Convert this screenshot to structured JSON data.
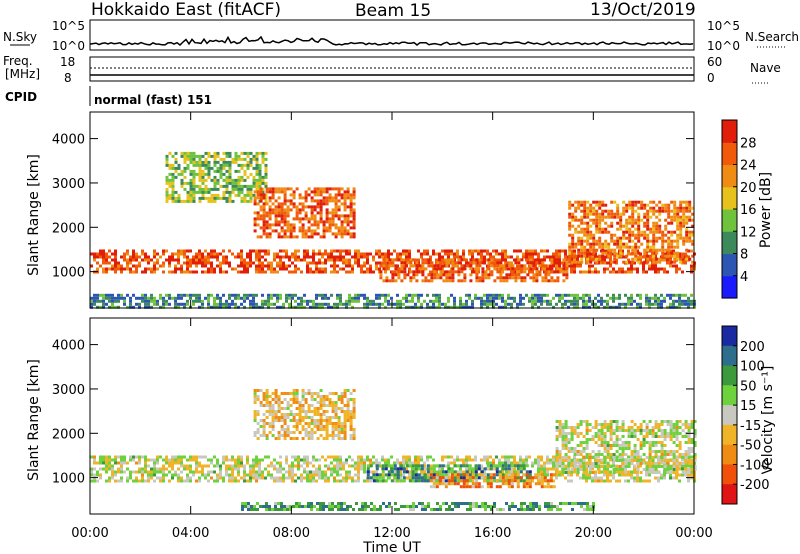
{
  "header": {
    "station": "Hokkaido East (fitACF)",
    "beam": "Beam 15",
    "date": "13/Oct/2019"
  },
  "strip": {
    "nsky_label": "N.Sky",
    "nsearch_label": "N.Search",
    "noise_ticks": [
      "10^5",
      "10^0"
    ],
    "freq_label_1": "Freq.",
    "freq_label_2": "[MHz]",
    "freq_ticks": [
      "18",
      "8"
    ],
    "nave_label": "Nave",
    "nave_ticks": [
      "60",
      "0"
    ],
    "cpid_label": "CPID",
    "cpid_value": "normal (fast) 151"
  },
  "chart_data": [
    {
      "type": "heatmap",
      "name": "power",
      "ylabel": "Slant Range [km]",
      "xlabel": "Time UT",
      "x_ticks": [
        "00:00",
        "04:00",
        "08:00",
        "12:00",
        "16:00",
        "20:00",
        "00:00"
      ],
      "xlim_hours": [
        0,
        24
      ],
      "ylim": [
        180,
        4600
      ],
      "y_ticks": [
        1000,
        2000,
        3000,
        4000
      ],
      "colorbar": {
        "label": "Power [dB]",
        "ticks": [
          "4",
          "8",
          "12",
          "16",
          "20",
          "24",
          "28"
        ],
        "colors": [
          "#1a1aff",
          "#2d55b4",
          "#3c8a5c",
          "#6fc23c",
          "#e8c21c",
          "#f08c14",
          "#f05a0a",
          "#e01e0a"
        ]
      },
      "bands": [
        {
          "x": [
            0.0,
            24.0
          ],
          "r": [
            1000,
            1500
          ],
          "level": 0.85
        },
        {
          "x": [
            3.0,
            7.0
          ],
          "r": [
            2600,
            3700
          ],
          "level": 0.45
        },
        {
          "x": [
            6.5,
            10.5
          ],
          "r": [
            1800,
            2900
          ],
          "level": 0.8
        },
        {
          "x": [
            11.5,
            19.0
          ],
          "r": [
            800,
            1300
          ],
          "level": 0.8
        },
        {
          "x": [
            19.0,
            24.0
          ],
          "r": [
            1200,
            2600
          ],
          "level": 0.75
        },
        {
          "x": [
            0.0,
            24.0
          ],
          "r": [
            200,
            500
          ],
          "level": 0.3
        }
      ]
    },
    {
      "type": "heatmap",
      "name": "velocity",
      "ylabel": "Slant Range [km]",
      "xlabel": "Time UT",
      "x_ticks": [
        "00:00",
        "04:00",
        "08:00",
        "12:00",
        "16:00",
        "20:00",
        "00:00"
      ],
      "xlim_hours": [
        0,
        24
      ],
      "ylim": [
        180,
        4600
      ],
      "y_ticks": [
        1000,
        2000,
        3000,
        4000
      ],
      "colorbar": {
        "label": "Velocity [m s⁻¹]",
        "ticks": [
          "200",
          "100",
          "50",
          "15",
          "-15",
          "-50",
          "-100",
          "-200"
        ],
        "colors": [
          "#1a2aa0",
          "#2d6e8c",
          "#3c9a3c",
          "#6ed23c",
          "#c8c8c0",
          "#f0b428",
          "#f08c14",
          "#f0500a",
          "#e01414"
        ]
      },
      "bands": [
        {
          "x": [
            0.0,
            24.0
          ],
          "r": [
            900,
            1500
          ],
          "level": 0.5
        },
        {
          "x": [
            6.5,
            10.5
          ],
          "r": [
            1900,
            3000
          ],
          "level": 0.6
        },
        {
          "x": [
            11.0,
            17.5
          ],
          "r": [
            900,
            1300
          ],
          "level": 0.25
        },
        {
          "x": [
            13.5,
            18.5
          ],
          "r": [
            800,
            1100
          ],
          "level": 0.7
        },
        {
          "x": [
            18.5,
            24.0
          ],
          "r": [
            1100,
            2300
          ],
          "level": 0.5
        },
        {
          "x": [
            6.0,
            20.0
          ],
          "r": [
            250,
            450
          ],
          "level": 0.3
        }
      ]
    }
  ]
}
